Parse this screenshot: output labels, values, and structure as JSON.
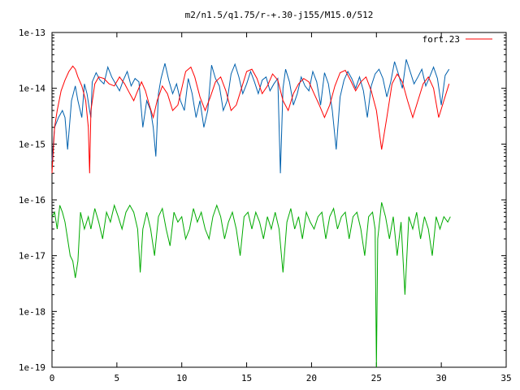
{
  "chart_data": {
    "type": "line",
    "title": "m2/n1.5/q1.75/r-+.30-j155/M15.0/512",
    "xlabel": "",
    "ylabel": "",
    "xlim": [
      0,
      35
    ],
    "ylim": [
      1e-19,
      1e-13
    ],
    "yscale": "log",
    "grid": false,
    "legend_position": "top-right",
    "x_ticks": [
      0,
      5,
      10,
      15,
      20,
      25,
      30,
      35
    ],
    "x_tick_labels": [
      "0",
      "5",
      "10",
      "15",
      "20",
      "25",
      "30",
      "35"
    ],
    "y_ticks": [
      1e-19,
      1e-18,
      1e-17,
      1e-16,
      1e-15,
      1e-14,
      1e-13
    ],
    "y_tick_labels": [
      "1e-19",
      "1e-18",
      "1e-17",
      "1e-16",
      "1e-15",
      "1e-14",
      "1e-13"
    ],
    "series": [
      {
        "name": "fort.23",
        "color": "#ff0000",
        "x": [
          0.0,
          0.1,
          0.2,
          0.4,
          0.7,
          1.0,
          1.3,
          1.6,
          1.8,
          2.0,
          2.3,
          2.6,
          2.8,
          2.9,
          3.0,
          3.3,
          3.6,
          4.0,
          4.4,
          4.8,
          5.2,
          5.6,
          6.0,
          6.3,
          6.6,
          6.9,
          7.2,
          7.5,
          7.8,
          8.1,
          8.5,
          8.9,
          9.3,
          9.7,
          10.0,
          10.3,
          10.7,
          11.0,
          11.4,
          11.8,
          12.2,
          12.6,
          13.0,
          13.4,
          13.8,
          14.2,
          14.6,
          15.0,
          15.4,
          15.8,
          16.2,
          16.6,
          17.0,
          17.4,
          17.8,
          18.2,
          18.6,
          19.0,
          19.4,
          19.8,
          20.2,
          20.6,
          21.0,
          21.4,
          21.8,
          22.2,
          22.6,
          23.0,
          23.4,
          23.8,
          24.2,
          24.6,
          25.0,
          25.4,
          25.8,
          26.2,
          26.6,
          27.0,
          27.4,
          27.8,
          28.2,
          28.6,
          29.0,
          29.4,
          29.8,
          30.2,
          30.6
        ],
        "y": [
          3e-16,
          8e-16,
          2e-15,
          4e-15,
          9e-15,
          1.4e-14,
          2e-14,
          2.5e-14,
          2.2e-14,
          1.6e-14,
          1.1e-14,
          6e-15,
          2e-15,
          3e-16,
          4e-15,
          1.2e-14,
          1.6e-14,
          1.5e-14,
          1.2e-14,
          1.1e-14,
          1.6e-14,
          1.2e-14,
          8e-15,
          6e-15,
          9e-15,
          1.3e-14,
          9e-15,
          5e-15,
          3e-15,
          6e-15,
          1.1e-14,
          8e-15,
          4e-15,
          5e-15,
          1e-14,
          2e-14,
          2.4e-14,
          1.6e-14,
          7e-15,
          4e-15,
          7e-15,
          1.3e-14,
          1.6e-14,
          9e-15,
          4e-15,
          5e-15,
          1e-14,
          2e-14,
          2.2e-14,
          1.5e-14,
          8e-15,
          1.1e-14,
          1.8e-14,
          1.4e-14,
          6e-15,
          4e-15,
          8e-15,
          1.2e-14,
          1.5e-14,
          1.3e-14,
          8e-15,
          5e-15,
          3e-15,
          5e-15,
          1.1e-14,
          1.9e-14,
          2.1e-14,
          1.4e-14,
          9e-15,
          1.3e-14,
          1.6e-14,
          9e-15,
          4e-15,
          8e-16,
          3e-15,
          1.2e-14,
          1.8e-14,
          1.3e-14,
          6e-15,
          3e-15,
          6e-15,
          1.2e-14,
          1.6e-14,
          1e-14,
          3e-15,
          6e-15,
          1.2e-14
        ]
      },
      {
        "color": "#0060ad",
        "x": [
          0.0,
          0.2,
          0.5,
          0.8,
          1.0,
          1.2,
          1.5,
          1.8,
          2.0,
          2.3,
          2.5,
          2.7,
          2.9,
          3.0,
          3.1,
          3.4,
          3.7,
          4.0,
          4.3,
          4.6,
          4.9,
          5.2,
          5.5,
          5.8,
          6.1,
          6.4,
          6.7,
          7.0,
          7.3,
          7.6,
          7.8,
          8.0,
          8.2,
          8.4,
          8.7,
          9.0,
          9.3,
          9.6,
          9.9,
          10.2,
          10.5,
          10.8,
          11.1,
          11.4,
          11.7,
          12.0,
          12.3,
          12.6,
          12.9,
          13.2,
          13.5,
          13.8,
          14.1,
          14.4,
          14.7,
          15.0,
          15.3,
          15.6,
          15.9,
          16.2,
          16.5,
          16.8,
          17.1,
          17.4,
          17.6,
          17.8,
          18.0,
          18.3,
          18.6,
          18.9,
          19.2,
          19.5,
          19.8,
          20.1,
          20.4,
          20.7,
          21.0,
          21.3,
          21.6,
          21.9,
          22.2,
          22.5,
          22.8,
          23.1,
          23.4,
          23.7,
          24.0,
          24.3,
          24.6,
          24.9,
          25.2,
          25.5,
          25.8,
          26.1,
          26.4,
          26.7,
          27.0,
          27.3,
          27.6,
          27.9,
          28.2,
          28.5,
          28.8,
          29.1,
          29.4,
          29.7,
          30.0,
          30.3,
          30.6
        ],
        "y": [
          5e-16,
          2e-15,
          3e-15,
          4e-15,
          3e-15,
          8e-16,
          6e-15,
          1.1e-14,
          6e-15,
          3e-15,
          1.2e-14,
          8e-15,
          4e-15,
          3e-15,
          1.3e-14,
          1.9e-14,
          1.4e-14,
          1.2e-14,
          2.4e-14,
          1.6e-14,
          1.2e-14,
          9e-15,
          1.4e-14,
          2e-14,
          1.1e-14,
          1.5e-14,
          1.3e-14,
          2e-15,
          6e-15,
          4e-15,
          2e-15,
          6e-16,
          8e-15,
          1.5e-14,
          2.8e-14,
          1.4e-14,
          8e-15,
          1.2e-14,
          6e-15,
          4e-15,
          1.5e-14,
          8e-15,
          3e-15,
          6e-15,
          2e-15,
          4e-15,
          2.6e-14,
          1.5e-14,
          1.1e-14,
          4e-15,
          6e-15,
          1.8e-14,
          2.7e-14,
          1.6e-14,
          8e-15,
          1.2e-14,
          2e-14,
          1.3e-14,
          8e-15,
          1.4e-14,
          1.6e-14,
          9e-15,
          1.2e-14,
          1.5e-14,
          3e-16,
          1e-14,
          2.2e-14,
          1.3e-14,
          5e-15,
          8e-15,
          1.6e-14,
          1.1e-14,
          9e-15,
          2e-14,
          1.3e-14,
          5e-15,
          1.9e-14,
          1.2e-14,
          4e-15,
          8e-16,
          7e-15,
          1.4e-14,
          2e-14,
          1.5e-14,
          1e-14,
          1.6e-14,
          9e-15,
          3e-15,
          1.1e-14,
          1.8e-14,
          2.2e-14,
          1.5e-14,
          7e-15,
          1.3e-14,
          3e-14,
          1.8e-14,
          1e-14,
          3.3e-14,
          2e-14,
          1.2e-14,
          1.6e-14,
          2.2e-14,
          1.1e-14,
          1.6e-14,
          2.4e-14,
          1.5e-14,
          5e-15,
          1.7e-14,
          2.2e-14
        ]
      },
      {
        "color": "#00aa00",
        "x": [
          0.0,
          0.2,
          0.4,
          0.6,
          0.8,
          1.0,
          1.2,
          1.4,
          1.6,
          1.8,
          2.0,
          2.2,
          2.5,
          2.8,
          3.0,
          3.3,
          3.6,
          3.9,
          4.2,
          4.5,
          4.8,
          5.1,
          5.4,
          5.7,
          6.0,
          6.3,
          6.6,
          6.8,
          7.0,
          7.3,
          7.6,
          7.9,
          8.2,
          8.5,
          8.8,
          9.1,
          9.4,
          9.7,
          10.0,
          10.3,
          10.6,
          10.9,
          11.2,
          11.5,
          11.8,
          12.1,
          12.4,
          12.7,
          13.0,
          13.3,
          13.6,
          13.9,
          14.2,
          14.5,
          14.8,
          15.1,
          15.4,
          15.7,
          16.0,
          16.3,
          16.6,
          16.9,
          17.2,
          17.5,
          17.8,
          18.1,
          18.4,
          18.7,
          19.0,
          19.3,
          19.6,
          19.9,
          20.2,
          20.5,
          20.8,
          21.1,
          21.4,
          21.7,
          22.0,
          22.3,
          22.6,
          22.9,
          23.2,
          23.5,
          23.8,
          24.1,
          24.4,
          24.7,
          24.9,
          25.0,
          25.1,
          25.4,
          25.7,
          26.0,
          26.3,
          26.6,
          26.9,
          27.2,
          27.5,
          27.8,
          28.1,
          28.4,
          28.7,
          29.0,
          29.3,
          29.6,
          29.9,
          30.2,
          30.5,
          30.7
        ],
        "y": [
          5e-17,
          6e-17,
          3e-17,
          8e-17,
          6e-17,
          4e-17,
          2e-17,
          1e-17,
          8e-18,
          4e-18,
          8e-18,
          6e-17,
          3e-17,
          5e-17,
          3e-17,
          7e-17,
          4e-17,
          2e-17,
          6e-17,
          4e-17,
          8e-17,
          5e-17,
          3e-17,
          6e-17,
          8e-17,
          6e-17,
          3e-17,
          5e-18,
          3e-17,
          6e-17,
          3e-17,
          1e-17,
          5e-17,
          7e-17,
          3e-17,
          1.5e-17,
          6e-17,
          4e-17,
          5e-17,
          2e-17,
          3e-17,
          7e-17,
          4e-17,
          6e-17,
          3e-17,
          2e-17,
          5e-17,
          8e-17,
          5e-17,
          2e-17,
          4e-17,
          6e-17,
          3e-17,
          1e-17,
          5e-17,
          6e-17,
          3e-17,
          6e-17,
          4e-17,
          2e-17,
          5e-17,
          3e-17,
          6e-17,
          3e-17,
          5e-18,
          4e-17,
          7e-17,
          3e-17,
          5e-17,
          2e-17,
          6e-17,
          4e-17,
          3e-17,
          5e-17,
          6e-17,
          2e-17,
          5e-17,
          7e-17,
          3e-17,
          5e-17,
          6e-17,
          2e-17,
          5e-17,
          6e-17,
          3e-17,
          1e-17,
          5e-17,
          6e-17,
          3e-17,
          1e-19,
          2e-17,
          9e-17,
          5e-17,
          2e-17,
          5e-17,
          1e-17,
          4e-17,
          2e-18,
          5e-17,
          3e-17,
          6e-17,
          2e-17,
          5e-17,
          3e-17,
          1e-17,
          5e-17,
          3e-17,
          5e-17,
          4e-17,
          5e-17
        ]
      }
    ]
  }
}
